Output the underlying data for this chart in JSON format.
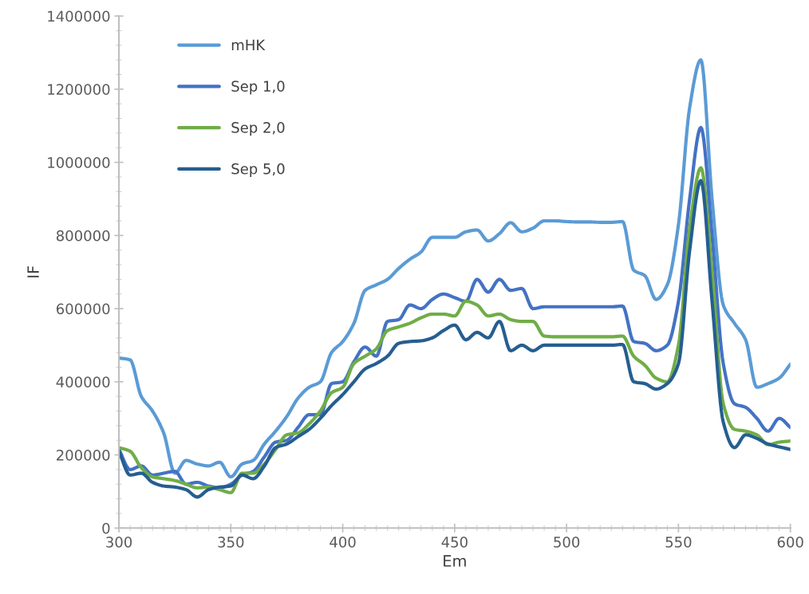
{
  "chart_data": {
    "type": "line",
    "xlabel": "Em",
    "ylabel": "IF",
    "xlim": [
      300,
      600
    ],
    "xticks": [
      300,
      350,
      400,
      450,
      500,
      550,
      600
    ],
    "ylim": [
      0,
      1400000
    ],
    "yticks": [
      0,
      200000,
      400000,
      600000,
      800000,
      1000000,
      1200000,
      1400000
    ],
    "grid": false,
    "legend": "top left",
    "marker": "none",
    "line_style": "solid",
    "x": [
      300,
      305,
      310,
      315,
      320,
      325,
      330,
      335,
      340,
      345,
      350,
      355,
      360,
      365,
      370,
      375,
      380,
      385,
      390,
      395,
      400,
      405,
      410,
      415,
      420,
      425,
      430,
      435,
      440,
      445,
      450,
      455,
      460,
      465,
      470,
      475,
      480,
      485,
      490,
      495,
      500,
      505,
      510,
      515,
      520,
      525,
      530,
      535,
      540,
      545,
      550,
      555,
      560,
      565,
      570,
      575,
      580,
      585,
      590,
      595,
      600
    ],
    "series": [
      {
        "name": "mHK",
        "color": "#5b9bd5",
        "values": [
          465000,
          460000,
          360000,
          320000,
          260000,
          150000,
          185000,
          175000,
          170000,
          180000,
          140000,
          175000,
          185000,
          230000,
          265000,
          305000,
          355000,
          385000,
          400000,
          480000,
          510000,
          560000,
          650000,
          665000,
          680000,
          710000,
          735000,
          755000,
          795000,
          795000,
          795000,
          810000,
          815000,
          785000,
          805000,
          835000,
          810000,
          820000,
          840000,
          840000,
          838000,
          837000,
          837000,
          836000,
          836000,
          838000,
          705000,
          690000,
          625000,
          665000,
          830000,
          1150000,
          1280000,
          900000,
          610000,
          560000,
          515000,
          385000,
          395000,
          410000,
          448000
        ]
      },
      {
        "name": "Sep 1,0",
        "color": "#4472c4",
        "values": [
          215000,
          160000,
          170000,
          145000,
          150000,
          155000,
          120000,
          125000,
          115000,
          110000,
          120000,
          145000,
          155000,
          195000,
          235000,
          240000,
          275000,
          310000,
          310000,
          395000,
          400000,
          455000,
          495000,
          470000,
          565000,
          570000,
          610000,
          600000,
          625000,
          640000,
          630000,
          620000,
          680000,
          645000,
          680000,
          650000,
          655000,
          600000,
          605000,
          605000,
          605000,
          605000,
          605000,
          605000,
          605000,
          607000,
          510000,
          505000,
          485000,
          500000,
          620000,
          900000,
          1095000,
          800000,
          450000,
          340000,
          330000,
          300000,
          265000,
          300000,
          275000
        ]
      },
      {
        "name": "Sep 2,0",
        "color": "#70ad47",
        "values": [
          220000,
          210000,
          165000,
          140000,
          135000,
          130000,
          120000,
          110000,
          112000,
          105000,
          97000,
          150000,
          150000,
          175000,
          215000,
          255000,
          260000,
          285000,
          320000,
          370000,
          385000,
          450000,
          470000,
          490000,
          540000,
          550000,
          560000,
          575000,
          585000,
          585000,
          580000,
          620000,
          610000,
          580000,
          585000,
          570000,
          565000,
          565000,
          525000,
          523000,
          523000,
          523000,
          523000,
          523000,
          523000,
          525000,
          470000,
          445000,
          410000,
          400000,
          500000,
          820000,
          985000,
          700000,
          340000,
          270000,
          265000,
          255000,
          228000,
          235000,
          238000
        ]
      },
      {
        "name": "Sep 5,0",
        "color": "#255e91",
        "values": [
          210000,
          145000,
          150000,
          125000,
          115000,
          112000,
          105000,
          85000,
          105000,
          112000,
          115000,
          145000,
          135000,
          170000,
          220000,
          230000,
          250000,
          270000,
          300000,
          335000,
          365000,
          400000,
          435000,
          450000,
          470000,
          505000,
          510000,
          512000,
          520000,
          540000,
          555000,
          515000,
          535000,
          520000,
          565000,
          485000,
          500000,
          485000,
          500000,
          500000,
          500000,
          500000,
          500000,
          500000,
          500000,
          502000,
          400000,
          395000,
          380000,
          395000,
          450000,
          760000,
          950000,
          620000,
          290000,
          220000,
          255000,
          245000,
          230000,
          222000,
          215000
        ]
      }
    ]
  }
}
